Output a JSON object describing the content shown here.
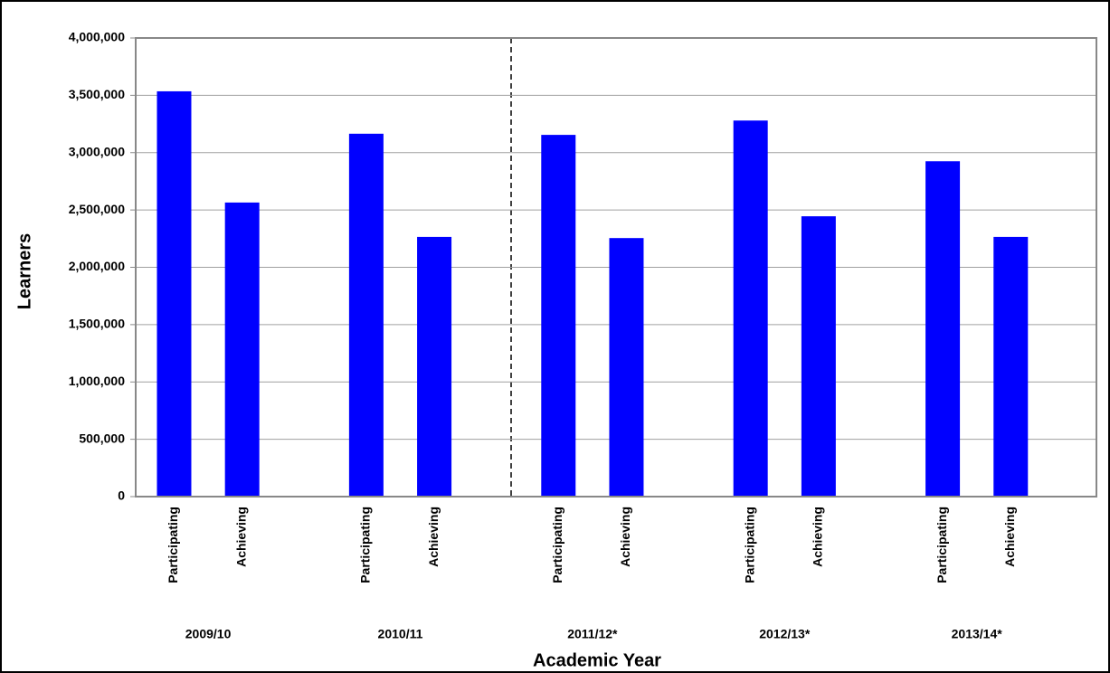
{
  "chart_data": {
    "type": "bar",
    "x_label": "Academic Year",
    "y_label": "Learners",
    "groups": [
      "2009/10",
      "2010/11",
      "2011/12*",
      "2012/13*",
      "2013/14*"
    ],
    "categories": [
      "Participating",
      "Achieving",
      "Participating",
      "Achieving",
      "Participating",
      "Achieving",
      "Participating",
      "Achieving",
      "Participating",
      "Achieving"
    ],
    "values": [
      3535000,
      2565000,
      3165000,
      2265000,
      3155000,
      2255000,
      3280000,
      2445000,
      2925000,
      2265000
    ],
    "color": "#0000ff",
    "ylim": [
      0,
      4000000
    ],
    "yticks": [
      0,
      {
        "value": 500000,
        "label": "500,000"
      },
      {
        "value": 1000000,
        "label": "1,000,000"
      },
      {
        "value": 1500000,
        "label": "1,500,000"
      },
      {
        "value": 2000000,
        "label": "2,000,000"
      },
      {
        "value": 2500000,
        "label": "2,500,000"
      },
      {
        "value": 3000000,
        "label": "3,000,000"
      },
      {
        "value": 3500000,
        "label": "3,500,000"
      },
      {
        "value": 4000000,
        "label": "4,000,000"
      }
    ],
    "grid": true
  }
}
